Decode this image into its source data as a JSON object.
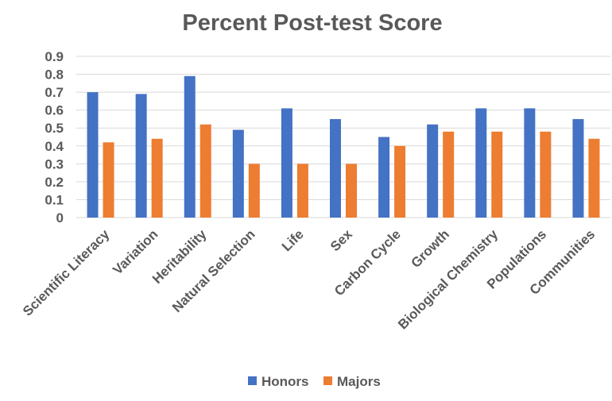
{
  "chart_data": {
    "type": "bar",
    "title": "Percent Post-test Score",
    "xlabel": "",
    "ylabel": "",
    "ylim": [
      0,
      0.9
    ],
    "yticks": [
      "0",
      "0.1",
      "0.2",
      "0.3",
      "0.4",
      "0.5",
      "0.6",
      "0.7",
      "0.8",
      "0.9"
    ],
    "grid": true,
    "legend_position": "bottom",
    "categories": [
      "Scientific Literacy",
      "Variation",
      "Heritability",
      "Natural Selection",
      "Life",
      "Sex",
      "Carbon Cycle",
      "Growth",
      "Biological Chemistry",
      "Populations",
      "Communities"
    ],
    "series": [
      {
        "name": "Honors",
        "color": "#4472c4",
        "values": [
          0.7,
          0.69,
          0.79,
          0.49,
          0.61,
          0.55,
          0.45,
          0.52,
          0.61,
          0.61,
          0.55
        ]
      },
      {
        "name": "Majors",
        "color": "#ed7d31",
        "values": [
          0.42,
          0.44,
          0.52,
          0.3,
          0.3,
          0.3,
          0.4,
          0.48,
          0.48,
          0.48,
          0.44
        ]
      }
    ]
  }
}
